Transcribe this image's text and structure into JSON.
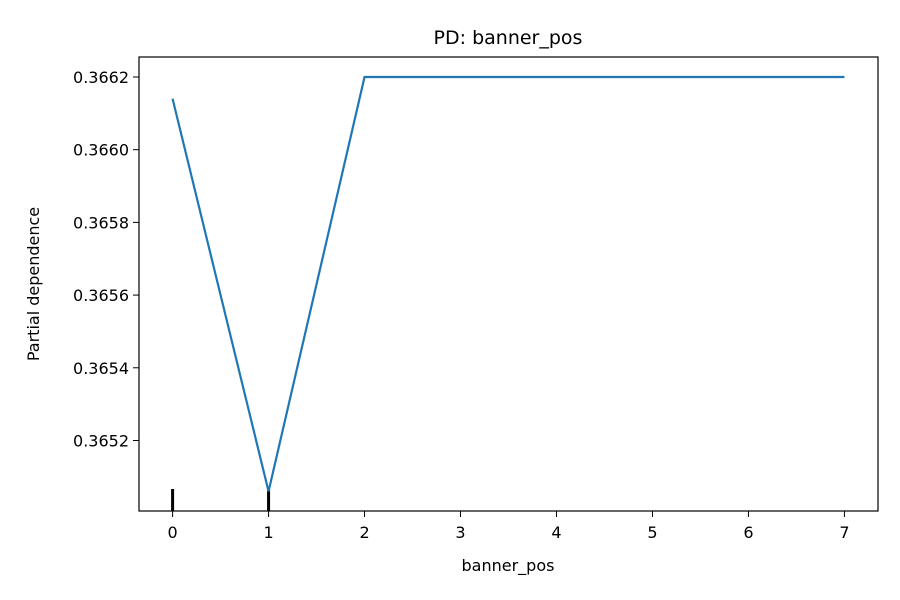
{
  "chart_data": {
    "type": "line",
    "title": "PD: banner_pos",
    "xlabel": "banner_pos",
    "ylabel": "Partial dependence",
    "x": [
      0,
      1,
      2,
      3,
      4,
      5,
      6,
      7
    ],
    "series": [
      {
        "values": [
          0.36614,
          0.36506,
          0.3662,
          0.3662,
          0.3662,
          0.3662,
          0.3662,
          0.3662
        ],
        "color": "#1f77b4"
      }
    ],
    "rug": [
      0,
      1
    ],
    "xlim": [
      -0.35,
      7.35
    ],
    "ylim": [
      0.365006,
      0.366255
    ],
    "xticks": [
      {
        "value": 0,
        "label": "0"
      },
      {
        "value": 1,
        "label": "1"
      },
      {
        "value": 2,
        "label": "2"
      },
      {
        "value": 3,
        "label": "3"
      },
      {
        "value": 4,
        "label": "4"
      },
      {
        "value": 5,
        "label": "5"
      },
      {
        "value": 6,
        "label": "6"
      },
      {
        "value": 7,
        "label": "7"
      }
    ],
    "yticks": [
      {
        "value": 0.3652,
        "label": "0.3652"
      },
      {
        "value": 0.3654,
        "label": "0.3654"
      },
      {
        "value": 0.3656,
        "label": "0.3656"
      },
      {
        "value": 0.3658,
        "label": "0.3658"
      },
      {
        "value": 0.366,
        "label": "0.3660"
      },
      {
        "value": 0.3662,
        "label": "0.3662"
      }
    ],
    "grid": false,
    "legend": "none"
  }
}
